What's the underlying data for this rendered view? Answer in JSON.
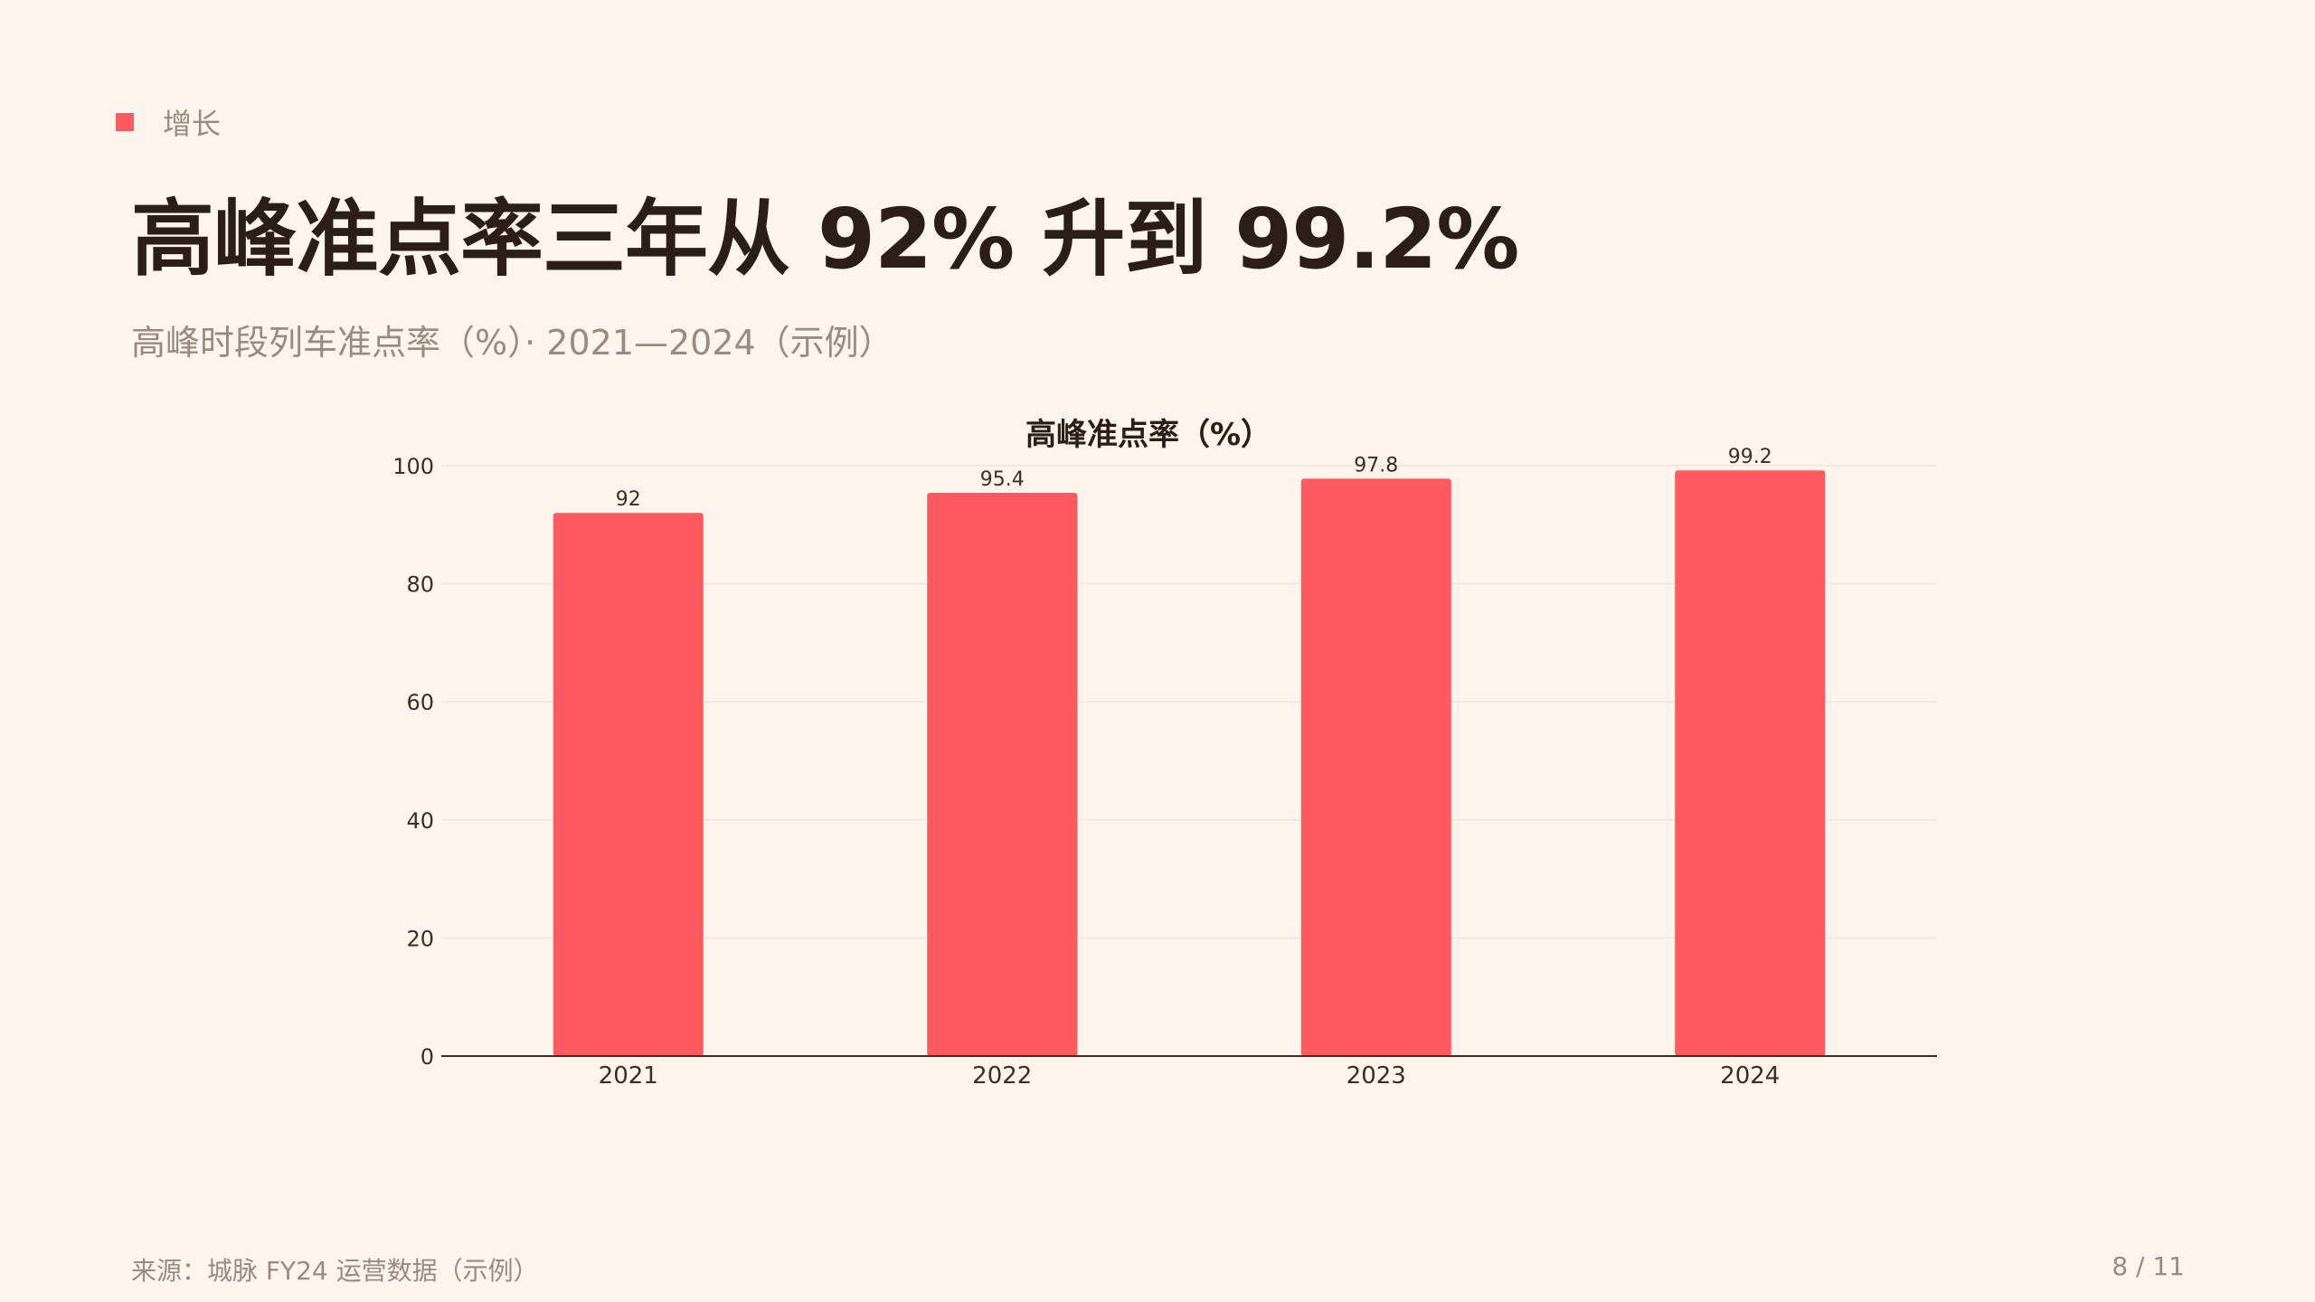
{
  "tag": {
    "label": "增长",
    "color": "#ff5a5f"
  },
  "title": "高峰准点率三年从 92% 升到 99.2%",
  "subtitle": "高峰时段列车准点率（%）· 2021—2024（示例）",
  "chart_data": {
    "type": "bar",
    "title": "高峰准点率（%）",
    "categories": [
      "2021",
      "2022",
      "2023",
      "2024"
    ],
    "values": [
      92,
      95.4,
      97.8,
      99.2
    ],
    "data_labels": [
      "92",
      "95.4",
      "97.8",
      "99.2"
    ],
    "xlabel": "",
    "ylabel": "",
    "ylim": [
      0,
      100
    ],
    "yticks": [
      0,
      20,
      40,
      60,
      80,
      100
    ],
    "grid": true,
    "legend": "none",
    "bar_color": "#ff5a5f"
  },
  "footer": {
    "source": "来源：城脉 FY24 运营数据（示例）",
    "page": "8 / 11"
  }
}
